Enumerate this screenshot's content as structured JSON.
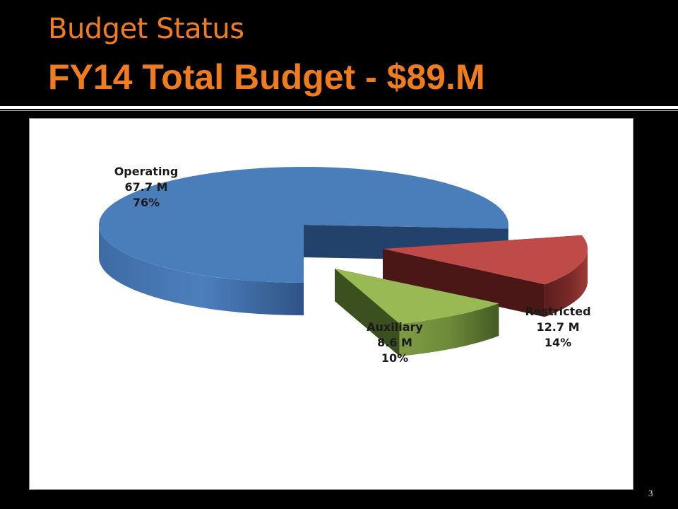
{
  "slide": {
    "title": "Budget Status",
    "subtitle": "FY14 Total Budget - $89.M",
    "slide_number": "3"
  },
  "colors": {
    "accent": "#F07C1E",
    "operating": "#4A7EBB",
    "restricted": "#BE4B48",
    "auxiliary": "#98B954"
  },
  "chart_data": {
    "type": "pie",
    "style": "3d-exploded",
    "slices": [
      {
        "name": "Operating",
        "value": 67.7,
        "value_label": "67.7 M",
        "percent_label": "76%",
        "color": "#4A7EBB"
      },
      {
        "name": "Restricted",
        "value": 12.7,
        "value_label": "12.7 M",
        "percent_label": "14%",
        "color": "#BE4B48"
      },
      {
        "name": "Auxiliary",
        "value": 8.6,
        "value_label": "8.6 M",
        "percent_label": "10%",
        "color": "#98B954"
      }
    ]
  }
}
